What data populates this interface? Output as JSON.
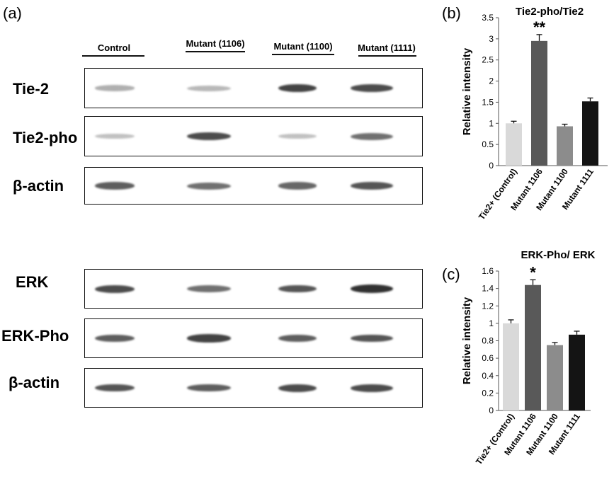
{
  "panel_a": {
    "letter": "(a)",
    "lane_headers": [
      "Control",
      "Mutant (1106)",
      "Mutant (1100)",
      "Mutant (1111)"
    ],
    "blot_labels_top": [
      "Tie-2",
      "Tie2-pho",
      "β-actin"
    ],
    "blot_labels_bottom": [
      "ERK",
      "ERK-Pho",
      "β-actin"
    ],
    "band_intensity": {
      "Tie-2": [
        0.25,
        0.2,
        0.85,
        0.8
      ],
      "Tie2-pho": [
        0.15,
        0.8,
        0.15,
        0.6
      ],
      "β-actin_top": [
        0.7,
        0.6,
        0.65,
        0.75
      ],
      "ERK": [
        0.8,
        0.6,
        0.75,
        0.95
      ],
      "ERK-Pho": [
        0.7,
        0.85,
        0.7,
        0.75
      ],
      "β-actin_bottom": [
        0.75,
        0.7,
        0.8,
        0.8
      ]
    }
  },
  "chart_data": [
    {
      "panel": "(b)",
      "type": "bar",
      "title": "Tie2-pho/Tie2",
      "ylabel": "Relative intensity",
      "xlabel": "",
      "categories": [
        "Tie2+ (Control)",
        "Mutant 1106",
        "Mutant 1100",
        "Mutant 1111"
      ],
      "values": [
        1.0,
        2.95,
        0.93,
        1.52
      ],
      "errors": [
        0.05,
        0.15,
        0.05,
        0.08
      ],
      "significance": [
        "",
        "**",
        "",
        ""
      ],
      "ylim": [
        0,
        3.5
      ],
      "yticks": [
        "0",
        "0.5",
        "1",
        "1.5",
        "2",
        "2.5",
        "3",
        "3.5"
      ],
      "bar_colors": [
        "#d9d9d9",
        "#595959",
        "#8c8c8c",
        "#141414"
      ],
      "grid": false
    },
    {
      "panel": "(c)",
      "type": "bar",
      "title": "ERK-Pho/ ERK",
      "ylabel": "Relative intensity",
      "xlabel": "",
      "categories": [
        "Tie2+ (Control)",
        "Mutant 1106",
        "Mutant 1100",
        "Mutant 1111"
      ],
      "values": [
        1.0,
        1.44,
        0.75,
        0.87
      ],
      "errors": [
        0.04,
        0.06,
        0.03,
        0.04
      ],
      "significance": [
        "",
        "*",
        "",
        ""
      ],
      "ylim": [
        0,
        1.6
      ],
      "yticks": [
        "0",
        "0.2",
        "0.4",
        "0.6",
        "0.8",
        "1",
        "1.2",
        "1.4",
        "1.6"
      ],
      "bar_colors": [
        "#d9d9d9",
        "#595959",
        "#8c8c8c",
        "#141414"
      ],
      "grid": false
    }
  ]
}
